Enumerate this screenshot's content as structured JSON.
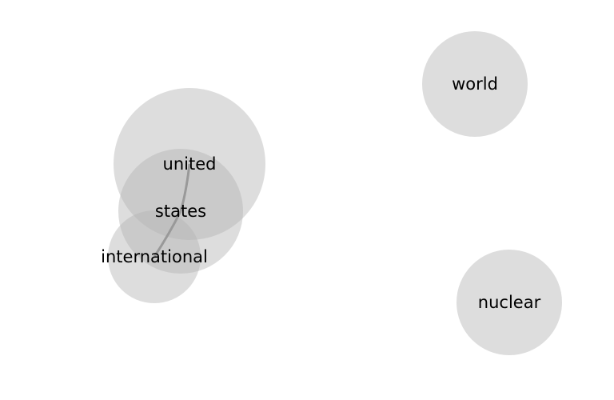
{
  "diagram": {
    "type": "word-bubble-graph",
    "nodes": [
      {
        "id": "united",
        "label": "united"
      },
      {
        "id": "states",
        "label": "states"
      },
      {
        "id": "international",
        "label": "international"
      },
      {
        "id": "world",
        "label": "world"
      },
      {
        "id": "nuclear",
        "label": "nuclear"
      }
    ],
    "edges": [
      {
        "from": "united",
        "to": "states"
      },
      {
        "from": "states",
        "to": "international"
      }
    ],
    "colors": {
      "bubble": "#b4b4b4",
      "edge": "#999999",
      "text": "#000000"
    }
  }
}
